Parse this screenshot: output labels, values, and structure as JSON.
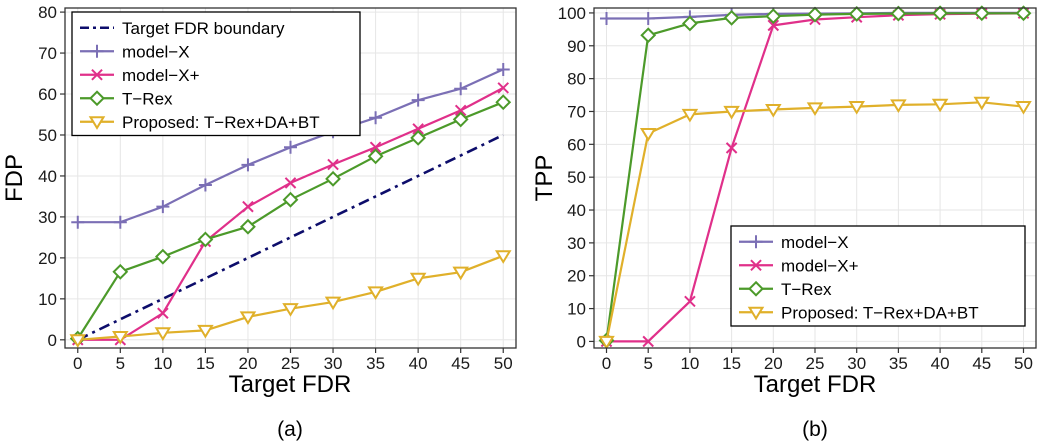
{
  "colors": {
    "target": "#0d0d6b",
    "modelX": "#7b6fb5",
    "modelXplus": "#e0308a",
    "trex": "#4c9a2a",
    "proposed": "#e0b02a",
    "grid": "#e6e6e6"
  },
  "chart_data": [
    {
      "type": "line",
      "panel": "a",
      "caption": "(a)",
      "xlabel": "Target FDR",
      "ylabel": "FDP",
      "x": [
        0,
        5,
        10,
        15,
        20,
        25,
        30,
        35,
        40,
        45,
        50
      ],
      "xlim": [
        -1.5,
        51.5
      ],
      "ylim": [
        -2,
        81
      ],
      "xticks": [
        0,
        5,
        10,
        15,
        20,
        25,
        30,
        35,
        40,
        45,
        50
      ],
      "yticks": [
        0,
        10,
        20,
        30,
        40,
        50,
        60,
        70,
        80
      ],
      "grid": true,
      "legend": "top-left",
      "series": [
        {
          "name": "Target FDR boundary",
          "key": "target",
          "marker": "none",
          "dash": "dashdot",
          "values": [
            0,
            5,
            10,
            15,
            20,
            25,
            30,
            35,
            40,
            45,
            50
          ]
        },
        {
          "name": "model−X",
          "key": "modelX",
          "marker": "plus",
          "values": [
            28.7,
            28.7,
            32.5,
            37.8,
            42.7,
            47.0,
            50.8,
            54.2,
            58.5,
            61.3,
            66.0
          ]
        },
        {
          "name": "model−X+",
          "key": "modelXplus",
          "marker": "x",
          "values": [
            0,
            0,
            6.5,
            24.0,
            32.5,
            38.3,
            42.8,
            47.0,
            51.5,
            56.0,
            61.5
          ]
        },
        {
          "name": "T−Rex",
          "key": "trex",
          "marker": "diamond",
          "values": [
            0.3,
            16.6,
            20.3,
            24.5,
            27.6,
            34.2,
            39.3,
            44.8,
            49.3,
            53.8,
            58.0
          ]
        },
        {
          "name": "Proposed: T−Rex+DA+BT",
          "key": "proposed",
          "marker": "triangle-down",
          "values": [
            0,
            0.8,
            1.7,
            2.3,
            5.6,
            7.6,
            9.2,
            11.7,
            15.0,
            16.5,
            20.5
          ]
        }
      ]
    },
    {
      "type": "line",
      "panel": "b",
      "caption": "(b)",
      "xlabel": "Target FDR",
      "ylabel": "TPP",
      "x": [
        0,
        5,
        10,
        15,
        20,
        25,
        30,
        35,
        40,
        45,
        50
      ],
      "xlim": [
        -1.5,
        51.5
      ],
      "ylim": [
        -2,
        101.5
      ],
      "xticks": [
        0,
        5,
        10,
        15,
        20,
        25,
        30,
        35,
        40,
        45,
        50
      ],
      "yticks": [
        0,
        10,
        20,
        30,
        40,
        50,
        60,
        70,
        80,
        90,
        100
      ],
      "grid": true,
      "legend": "bottom-right",
      "series": [
        {
          "name": "model−X",
          "key": "modelX",
          "marker": "plus",
          "values": [
            98.3,
            98.3,
            98.8,
            99.4,
            99.7,
            99.8,
            99.9,
            100,
            100,
            100,
            100
          ]
        },
        {
          "name": "model−X+",
          "key": "modelXplus",
          "marker": "x",
          "values": [
            0,
            0,
            12.2,
            58.9,
            96.2,
            98.0,
            98.7,
            99.3,
            99.6,
            99.8,
            99.9
          ]
        },
        {
          "name": "T−Rex",
          "key": "trex",
          "marker": "diamond",
          "values": [
            0.3,
            93.2,
            96.8,
            98.5,
            99.0,
            99.5,
            99.7,
            99.8,
            99.9,
            99.9,
            99.9
          ]
        },
        {
          "name": "Proposed: T−Rex+DA+BT",
          "key": "proposed",
          "marker": "triangle-down",
          "values": [
            0,
            63.3,
            69.1,
            70.0,
            70.6,
            71.1,
            71.5,
            72.0,
            72.2,
            72.8,
            71.5
          ]
        }
      ]
    }
  ]
}
